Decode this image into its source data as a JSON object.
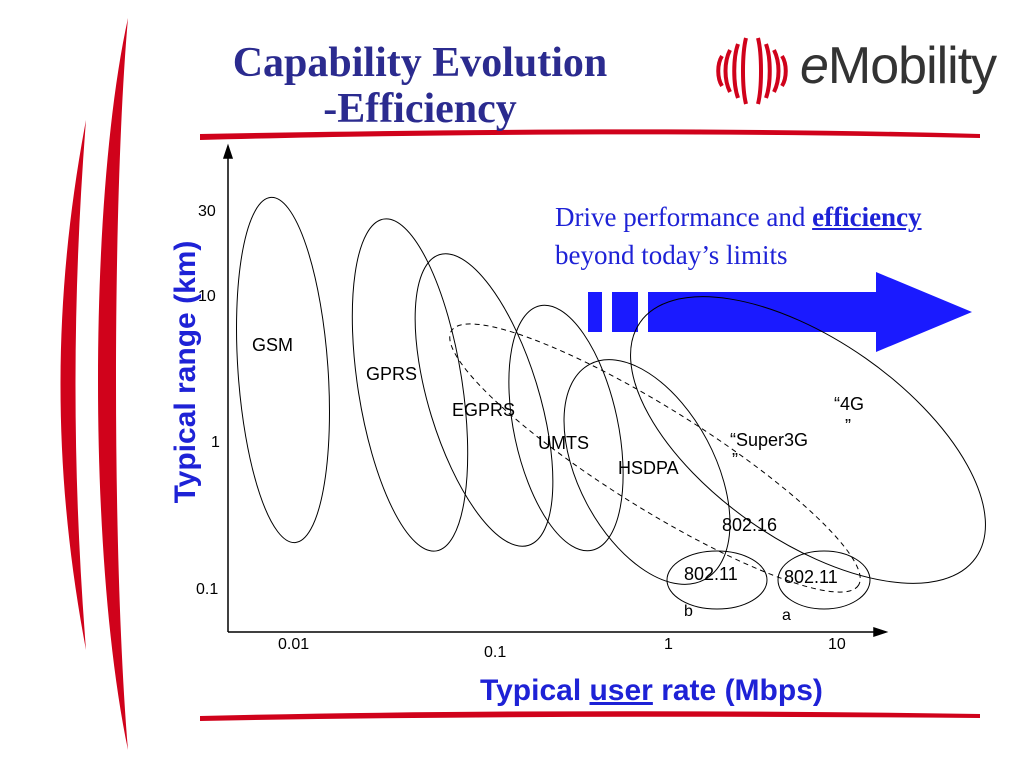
{
  "slide": {
    "title_line1": "Capability Evolution",
    "title_line2": "-Efficiency",
    "logo": "eMobility",
    "tagline_pre": "Drive performance and ",
    "tagline_emph": "efficiency",
    "tagline_line2": "beyond today’s limits",
    "colors": {
      "title": "#2b2b8f",
      "accent_red": "#d0021b",
      "axis_blue": "#1e22d6",
      "arrow_blue": "#1a1aff"
    }
  },
  "axes": {
    "x_title_pre": "Typical ",
    "x_title_u": "user",
    "x_title_post": " rate (Mbps)",
    "y_title": "Typical  range (km)",
    "x_ticks": [
      "0.01",
      "0.1",
      "1",
      "10"
    ],
    "y_ticks": [
      "30",
      "10",
      "1",
      "0.1"
    ]
  },
  "technologies": {
    "gsm": "GSM",
    "gprs": "GPRS",
    "egprs": "EGPRS",
    "umts": "UMTS",
    "hsdpa": "HSDPA",
    "super3g_a": "“Super3G",
    "super3g_b": "”",
    "fourg_a": "“4G",
    "fourg_b": "”",
    "wimax": "802.16",
    "wifi_b": "802.11",
    "wifi_b_sub": "b",
    "wifi_a": "802.11",
    "wifi_a_sub": "a"
  }
}
